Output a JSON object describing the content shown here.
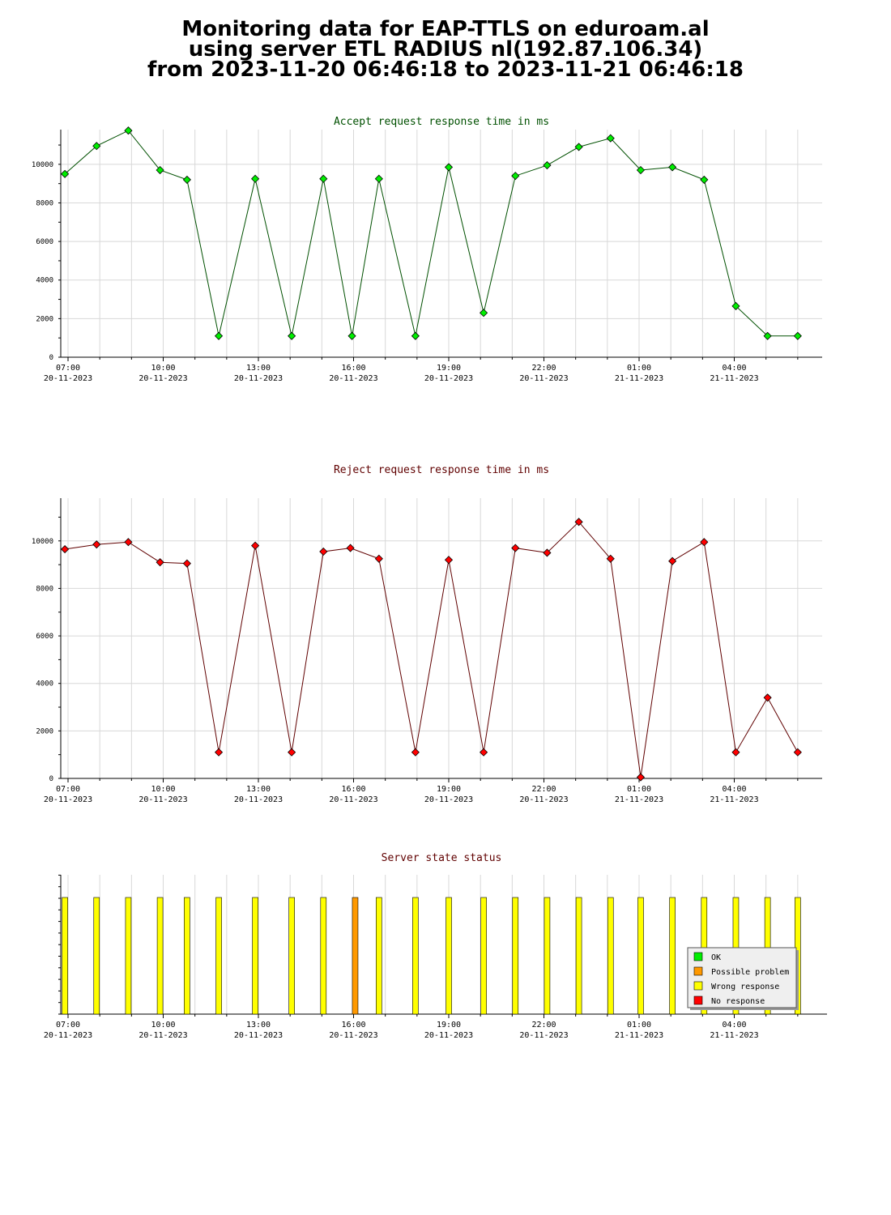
{
  "header": {
    "line1": "Monitoring data for EAP-TTLS on eduroam.al",
    "line2": "using server ETL RADIUS nl(192.87.106.34)",
    "line3": "from 2023-11-20 06:46:18 to 2023-11-21 06:46:18"
  },
  "colors": {
    "accept_line": "#005000",
    "accept_marker": "#00ee00",
    "reject_line": "#600000",
    "reject_marker": "#ff0000",
    "accept_title": "#005000",
    "reject_title": "#600000",
    "status_title": "#600000",
    "ok": "#00ee00",
    "possible_problem": "#ff9900",
    "wrong_response": "#ffff00",
    "no_response": "#ff0000",
    "grid": "#d8d8d8"
  },
  "chart_data": [
    {
      "type": "line",
      "title": "Accept request response time in ms",
      "x_range_hours": [
        6.77,
        30.77
      ],
      "ylim": [
        0,
        11800
      ],
      "y_ticks": [
        0,
        2000,
        4000,
        6000,
        8000,
        10000
      ],
      "x_ticks": [
        {
          "t": 7,
          "time": "07:00",
          "date": "20-11-2023"
        },
        {
          "t": 10,
          "time": "10:00",
          "date": "20-11-2023"
        },
        {
          "t": 13,
          "time": "13:00",
          "date": "20-11-2023"
        },
        {
          "t": 16,
          "time": "16:00",
          "date": "20-11-2023"
        },
        {
          "t": 19,
          "time": "19:00",
          "date": "20-11-2023"
        },
        {
          "t": 22,
          "time": "22:00",
          "date": "20-11-2023"
        },
        {
          "t": 25,
          "time": "01:00",
          "date": "21-11-2023"
        },
        {
          "t": 28,
          "time": "04:00",
          "date": "21-11-2023"
        }
      ],
      "series": [
        {
          "x": [
            6.9,
            7.9,
            8.9,
            9.9,
            10.75,
            11.75,
            12.9,
            14.05,
            15.05,
            15.95,
            16.8,
            17.95,
            19.0,
            20.1,
            21.1,
            22.1,
            23.1,
            24.1,
            25.05,
            26.05,
            27.05,
            28.05,
            29.05,
            30.0
          ],
          "y": [
            9500,
            10950,
            11750,
            9700,
            9200,
            1100,
            9250,
            1100,
            9250,
            1100,
            9250,
            1100,
            9850,
            2300,
            9400,
            9950,
            10900,
            11350,
            9700,
            9850,
            9200,
            2650,
            1100,
            1100
          ]
        }
      ]
    },
    {
      "type": "line",
      "title": "Reject request response time in ms",
      "x_range_hours": [
        6.77,
        30.77
      ],
      "ylim": [
        0,
        11800
      ],
      "y_ticks": [
        0,
        2000,
        4000,
        6000,
        8000,
        10000
      ],
      "x_ticks": [
        {
          "t": 7,
          "time": "07:00",
          "date": "20-11-2023"
        },
        {
          "t": 10,
          "time": "10:00",
          "date": "20-11-2023"
        },
        {
          "t": 13,
          "time": "13:00",
          "date": "20-11-2023"
        },
        {
          "t": 16,
          "time": "16:00",
          "date": "20-11-2023"
        },
        {
          "t": 19,
          "time": "19:00",
          "date": "20-11-2023"
        },
        {
          "t": 22,
          "time": "22:00",
          "date": "20-11-2023"
        },
        {
          "t": 25,
          "time": "01:00",
          "date": "21-11-2023"
        },
        {
          "t": 28,
          "time": "04:00",
          "date": "21-11-2023"
        }
      ],
      "series": [
        {
          "x": [
            6.9,
            7.9,
            8.9,
            9.9,
            10.75,
            11.75,
            12.9,
            14.05,
            15.05,
            15.9,
            16.8,
            17.95,
            19.0,
            20.1,
            21.1,
            22.1,
            23.1,
            24.1,
            25.05,
            26.05,
            27.05,
            28.05,
            29.05,
            30.0
          ],
          "y": [
            9650,
            9850,
            9950,
            9100,
            9050,
            1100,
            9800,
            1100,
            9550,
            9700,
            9250,
            1100,
            9200,
            1100,
            9700,
            9500,
            10800,
            9250,
            50,
            9150,
            9950,
            1100,
            3400,
            1100
          ]
        }
      ]
    },
    {
      "type": "bar",
      "title": "Server state status",
      "x_range_hours": [
        6.77,
        30.77
      ],
      "x_ticks": [
        {
          "t": 7,
          "time": "07:00",
          "date": "20-11-2023"
        },
        {
          "t": 10,
          "time": "10:00",
          "date": "20-11-2023"
        },
        {
          "t": 13,
          "time": "13:00",
          "date": "20-11-2023"
        },
        {
          "t": 16,
          "time": "16:00",
          "date": "20-11-2023"
        },
        {
          "t": 19,
          "time": "19:00",
          "date": "20-11-2023"
        },
        {
          "t": 22,
          "time": "22:00",
          "date": "20-11-2023"
        },
        {
          "t": 25,
          "time": "01:00",
          "date": "21-11-2023"
        },
        {
          "t": 28,
          "time": "04:00",
          "date": "21-11-2023"
        }
      ],
      "x": [
        6.9,
        7.9,
        8.9,
        9.9,
        10.75,
        11.75,
        12.9,
        14.05,
        15.05,
        16.05,
        16.8,
        17.95,
        19.0,
        20.1,
        21.1,
        22.1,
        23.1,
        24.1,
        25.05,
        26.05,
        27.05,
        28.05,
        29.05,
        30.0
      ],
      "status": [
        "wrong_response",
        "wrong_response",
        "wrong_response",
        "wrong_response",
        "wrong_response",
        "wrong_response",
        "wrong_response",
        "wrong_response",
        "wrong_response",
        "possible_problem",
        "wrong_response",
        "wrong_response",
        "wrong_response",
        "wrong_response",
        "wrong_response",
        "wrong_response",
        "wrong_response",
        "wrong_response",
        "wrong_response",
        "wrong_response",
        "wrong_response",
        "wrong_response",
        "wrong_response",
        "wrong_response"
      ],
      "legend": [
        {
          "key": "ok",
          "label": "OK"
        },
        {
          "key": "possible_problem",
          "label": "Possible problem"
        },
        {
          "key": "wrong_response",
          "label": "Wrong response"
        },
        {
          "key": "no_response",
          "label": "No response"
        }
      ],
      "legend_position": "bottom-right"
    }
  ]
}
